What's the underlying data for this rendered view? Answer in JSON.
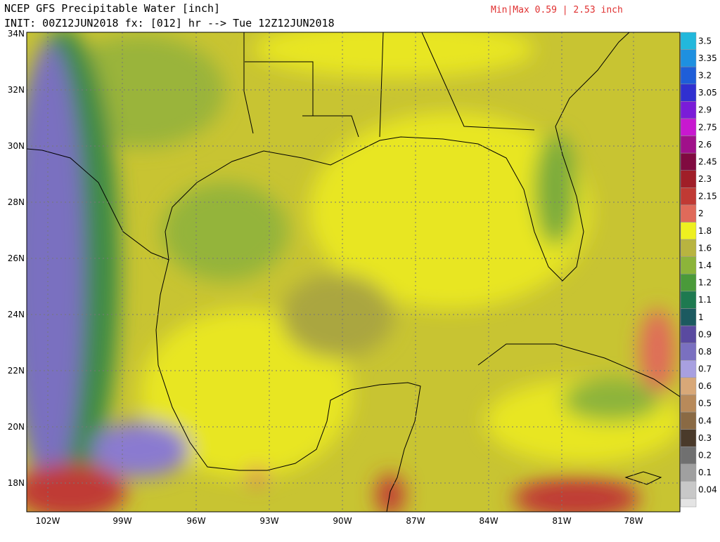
{
  "header": {
    "title": "NCEP GFS Precipitable Water [inch]",
    "subtitle": "INIT: 00Z12JUN2018 fx: [012] hr --> Tue 12Z12JUN2018",
    "minmax": "Min|Max 0.59 | 2.53 inch"
  },
  "map": {
    "lat_labels": [
      "34N",
      "32N",
      "30N",
      "28N",
      "26N",
      "24N",
      "22N",
      "20N",
      "18N"
    ],
    "lon_labels": [
      "102W",
      "99W",
      "96W",
      "93W",
      "90W",
      "87W",
      "84W",
      "81W",
      "78W"
    ]
  },
  "colorbar": [
    {
      "label": "3.5",
      "color": "#22b8dc"
    },
    {
      "label": "3.35",
      "color": "#1e90e0"
    },
    {
      "label": "3.2",
      "color": "#1e5ed8"
    },
    {
      "label": "3.05",
      "color": "#3030d0"
    },
    {
      "label": "2.9",
      "color": "#7a1cd8"
    },
    {
      "label": "2.75",
      "color": "#c818d0"
    },
    {
      "label": "2.6",
      "color": "#a0108a"
    },
    {
      "label": "2.45",
      "color": "#800a40"
    },
    {
      "label": "2.3",
      "color": "#a01e28"
    },
    {
      "label": "2.15",
      "color": "#c03a34"
    },
    {
      "label": "2",
      "color": "#e06a5a"
    },
    {
      "label": "1.8",
      "color": "#eef020"
    },
    {
      "label": "1.6",
      "color": "#b8b440"
    },
    {
      "label": "1.4",
      "color": "#8cb43a"
    },
    {
      "label": "1.2",
      "color": "#4a9a3a"
    },
    {
      "label": "1.1",
      "color": "#1e7a50"
    },
    {
      "label": "1",
      "color": "#1c5a60"
    },
    {
      "label": "0.9",
      "color": "#5a4aa0"
    },
    {
      "label": "0.8",
      "color": "#7a70c0"
    },
    {
      "label": "0.7",
      "color": "#a8a0e0"
    },
    {
      "label": "0.6",
      "color": "#d8a878"
    },
    {
      "label": "0.5",
      "color": "#b88a5a"
    },
    {
      "label": "0.4",
      "color": "#8a6a44"
    },
    {
      "label": "0.3",
      "color": "#4a3a2a"
    },
    {
      "label": "0.2",
      "color": "#707070"
    },
    {
      "label": "0.1",
      "color": "#a0a0a0"
    },
    {
      "label": "0.04",
      "color": "#c8c8c8"
    }
  ]
}
